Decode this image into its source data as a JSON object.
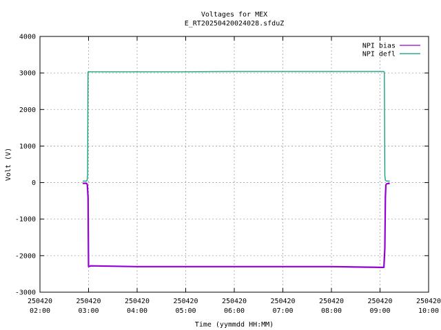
{
  "chart_data": {
    "type": "line",
    "title": "Voltages for MEX",
    "subtitle": "E_RT20250420024028.sfduZ",
    "xlabel": "Time (yymmdd HH:MM)",
    "ylabel": "Volt (V)",
    "xlim": [
      2,
      10
    ],
    "ylim": [
      -3000,
      4000
    ],
    "grid": true,
    "legend_position": "top-right",
    "y_ticks": [
      "4000",
      "3000",
      "2000",
      "1000",
      "0",
      "-1000",
      "-2000",
      "-3000"
    ],
    "x_ticks": [
      {
        "date": "250420",
        "time": "02:00"
      },
      {
        "date": "250420",
        "time": "03:00"
      },
      {
        "date": "250420",
        "time": "04:00"
      },
      {
        "date": "250420",
        "time": "05:00"
      },
      {
        "date": "250420",
        "time": "06:00"
      },
      {
        "date": "250420",
        "time": "07:00"
      },
      {
        "date": "250420",
        "time": "08:00"
      },
      {
        "date": "250420",
        "time": "09:00"
      },
      {
        "date": "250420",
        "time": "10:00"
      }
    ],
    "series": [
      {
        "name": "NPI bias",
        "color": "#9400d3",
        "x": [
          2.88,
          2.96,
          2.975,
          2.99,
          3.0,
          3.05,
          4.0,
          5.0,
          6.0,
          7.0,
          8.0,
          9.0,
          9.08,
          9.1,
          9.11,
          9.12,
          9.14,
          9.2
        ],
        "y": [
          -20,
          -20,
          -60,
          -400,
          -2300,
          -2280,
          -2300,
          -2300,
          -2300,
          -2300,
          -2300,
          -2320,
          -2320,
          -1800,
          -400,
          -60,
          -30,
          -20
        ]
      },
      {
        "name": "NPI defl",
        "color": "#009e73",
        "x": [
          2.88,
          2.96,
          2.97,
          2.98,
          2.99,
          3.0,
          4.0,
          5.0,
          6.0,
          7.0,
          8.0,
          9.0,
          9.08,
          9.09,
          9.1,
          9.11,
          9.14,
          9.2
        ],
        "y": [
          40,
          40,
          60,
          200,
          3030,
          3030,
          3030,
          3030,
          3040,
          3040,
          3040,
          3040,
          3040,
          3000,
          200,
          60,
          40,
          40
        ]
      }
    ]
  }
}
